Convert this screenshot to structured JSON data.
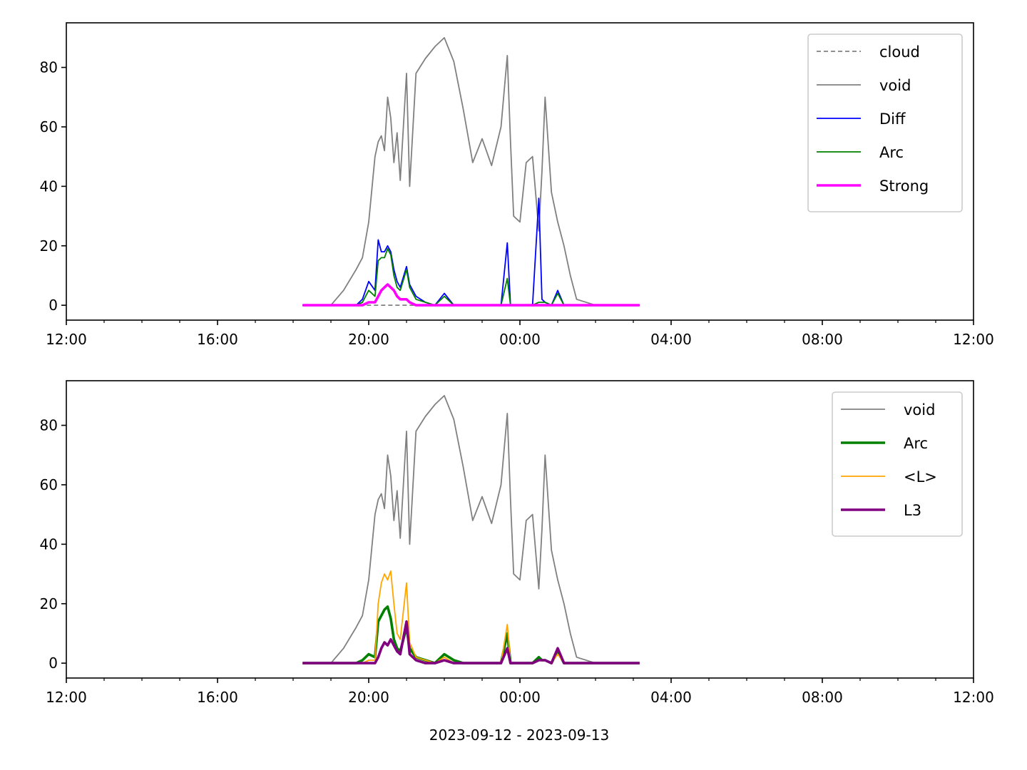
{
  "figure": {
    "xlabel": "2023-09-12 - 2023-09-13"
  },
  "colors": {
    "cloud": "#808080",
    "void": "#808080",
    "Diff": "#0000ff",
    "Arc": "#008000",
    "Strong": "#ff00ff",
    "L": "#ffa500",
    "L3": "#800080"
  },
  "chart_data": [
    {
      "type": "line",
      "panel": "top",
      "xlim": [
        "2023-09-12 12:00",
        "2023-09-13 12:00"
      ],
      "ylim": [
        -5,
        95
      ],
      "x_ticks": [
        "12:00",
        "16:00",
        "20:00",
        "00:00",
        "04:00",
        "08:00",
        "12:00"
      ],
      "y_ticks": [
        0,
        20,
        40,
        60,
        80
      ],
      "legend_position": "top-right",
      "legend": [
        "cloud",
        "void",
        "Diff",
        "Arc",
        "Strong"
      ],
      "x": [
        "18:15",
        "19:00",
        "19:20",
        "19:40",
        "19:50",
        "20:00",
        "20:10",
        "20:15",
        "20:20",
        "20:25",
        "20:30",
        "20:35",
        "20:40",
        "20:45",
        "20:50",
        "21:00",
        "21:05",
        "21:15",
        "21:30",
        "21:45",
        "22:00",
        "22:15",
        "22:30",
        "22:45",
        "23:00",
        "23:15",
        "23:30",
        "23:40",
        "23:45",
        "23:50",
        "00:00",
        "00:10",
        "00:20",
        "00:30",
        "00:35",
        "00:40",
        "00:50",
        "01:00",
        "01:10",
        "01:20",
        "01:30",
        "02:00",
        "02:30",
        "03:10"
      ],
      "series": [
        {
          "name": "cloud",
          "style": "dashed",
          "values": [
            0,
            0,
            0,
            0,
            0,
            0,
            0,
            0,
            0,
            0,
            0,
            0,
            0,
            0,
            0,
            0,
            0,
            0,
            0,
            0,
            0,
            0,
            0,
            0,
            0,
            0,
            0,
            0,
            0,
            0,
            0,
            0,
            0,
            0,
            0,
            0,
            0,
            0,
            0,
            0,
            0,
            0,
            0,
            0
          ]
        },
        {
          "name": "void",
          "style": "solid",
          "values": [
            0,
            0,
            5,
            12,
            16,
            28,
            50,
            55,
            57,
            52,
            70,
            63,
            48,
            58,
            42,
            78,
            40,
            78,
            83,
            87,
            90,
            82,
            66,
            48,
            56,
            47,
            60,
            84,
            55,
            30,
            28,
            48,
            50,
            25,
            45,
            70,
            38,
            28,
            20,
            10,
            2,
            0,
            0,
            0
          ]
        },
        {
          "name": "Diff",
          "style": "solid",
          "values": [
            0,
            0,
            0,
            0,
            2,
            8,
            5,
            22,
            18,
            18,
            20,
            18,
            12,
            8,
            6,
            13,
            7,
            3,
            1,
            0,
            4,
            0,
            0,
            0,
            0,
            0,
            0,
            21,
            0,
            0,
            0,
            0,
            0,
            36,
            2,
            1,
            0,
            5,
            0,
            0,
            0,
            0,
            0,
            0
          ]
        },
        {
          "name": "Arc",
          "style": "solid",
          "values": [
            0,
            0,
            0,
            0,
            1,
            5,
            3,
            15,
            16,
            16,
            19,
            17,
            10,
            6,
            5,
            12,
            6,
            2,
            1,
            0,
            3,
            0,
            0,
            0,
            0,
            0,
            0,
            9,
            0,
            0,
            0,
            0,
            0,
            1,
            1,
            1,
            0,
            4,
            0,
            0,
            0,
            0,
            0,
            0
          ]
        },
        {
          "name": "Strong",
          "style": "thick",
          "values": [
            0,
            0,
            0,
            0,
            0,
            1,
            1,
            3,
            5,
            6,
            7,
            6,
            5,
            3,
            2,
            2,
            1,
            0,
            0,
            0,
            0,
            0,
            0,
            0,
            0,
            0,
            0,
            0,
            0,
            0,
            0,
            0,
            0,
            0,
            0,
            0,
            0,
            0,
            0,
            0,
            0,
            0,
            0,
            0
          ]
        }
      ]
    },
    {
      "type": "line",
      "panel": "bottom",
      "xlim": [
        "2023-09-12 12:00",
        "2023-09-13 12:00"
      ],
      "ylim": [
        -5,
        95
      ],
      "x_ticks": [
        "12:00",
        "16:00",
        "20:00",
        "00:00",
        "04:00",
        "08:00",
        "12:00"
      ],
      "y_ticks": [
        0,
        20,
        40,
        60,
        80
      ],
      "legend_position": "top-right",
      "legend": [
        "void",
        "Arc",
        "<L>",
        "L3"
      ],
      "x": [
        "18:15",
        "19:00",
        "19:20",
        "19:40",
        "19:50",
        "20:00",
        "20:10",
        "20:15",
        "20:20",
        "20:25",
        "20:30",
        "20:35",
        "20:40",
        "20:45",
        "20:50",
        "21:00",
        "21:05",
        "21:15",
        "21:30",
        "21:45",
        "22:00",
        "22:15",
        "22:30",
        "22:45",
        "23:00",
        "23:15",
        "23:30",
        "23:40",
        "23:45",
        "23:50",
        "00:00",
        "00:10",
        "00:20",
        "00:30",
        "00:35",
        "00:40",
        "00:50",
        "01:00",
        "01:10",
        "01:20",
        "01:30",
        "02:00",
        "02:30",
        "03:10"
      ],
      "series": [
        {
          "name": "void",
          "style": "solid",
          "values": [
            0,
            0,
            5,
            12,
            16,
            28,
            50,
            55,
            57,
            52,
            70,
            63,
            48,
            58,
            42,
            78,
            40,
            78,
            83,
            87,
            90,
            82,
            66,
            48,
            56,
            47,
            60,
            84,
            55,
            30,
            28,
            48,
            50,
            25,
            45,
            70,
            38,
            28,
            20,
            10,
            2,
            0,
            0,
            0
          ]
        },
        {
          "name": "Arc",
          "style": "thick",
          "values": [
            0,
            0,
            0,
            0,
            1,
            3,
            2,
            14,
            16,
            18,
            19,
            15,
            8,
            5,
            4,
            12,
            5,
            2,
            1,
            0,
            3,
            1,
            0,
            0,
            0,
            0,
            0,
            10,
            0,
            0,
            0,
            0,
            0,
            2,
            1,
            1,
            0,
            4,
            0,
            0,
            0,
            0,
            0,
            0
          ]
        },
        {
          "name": "<L>",
          "style": "solid",
          "values": [
            0,
            0,
            0,
            0,
            0,
            1,
            1,
            20,
            27,
            30,
            28,
            31,
            20,
            10,
            8,
            27,
            7,
            2,
            1,
            0,
            2,
            0,
            0,
            0,
            0,
            0,
            0,
            13,
            0,
            0,
            0,
            0,
            0,
            1,
            1,
            1,
            0,
            3,
            0,
            0,
            0,
            0,
            0,
            0
          ]
        },
        {
          "name": "L3",
          "style": "thick",
          "values": [
            0,
            0,
            0,
            0,
            0,
            0,
            0,
            2,
            5,
            7,
            6,
            8,
            6,
            4,
            3,
            14,
            3,
            1,
            0,
            0,
            1,
            0,
            0,
            0,
            0,
            0,
            0,
            5,
            0,
            0,
            0,
            0,
            0,
            1,
            1,
            1,
            0,
            5,
            0,
            0,
            0,
            0,
            0,
            0
          ]
        }
      ]
    }
  ]
}
